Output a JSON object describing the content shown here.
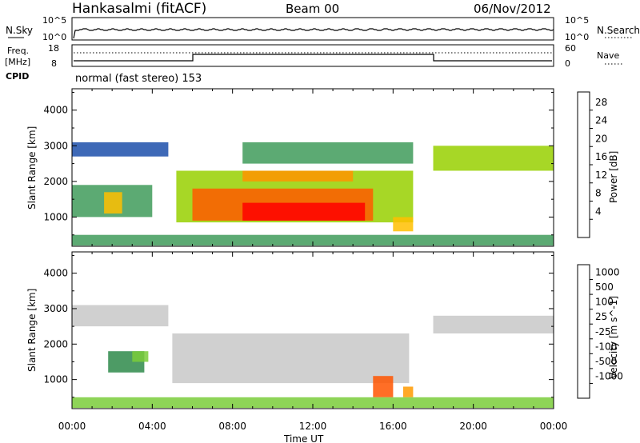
{
  "header": {
    "station": "Hankasalmi (fitACF)",
    "beam": "Beam 00",
    "date": "06/Nov/2012"
  },
  "panels": {
    "nsky": {
      "left_label": "N.Sky",
      "right_label": "N.Search",
      "tick_hi": "10^5",
      "tick_lo": "10^0",
      "right_tick_hi": "10^5",
      "right_tick_lo": "10^0"
    },
    "freq": {
      "left_label_1": "Freq.",
      "left_label_2": "[MHz]",
      "left_tick_hi": "18",
      "left_tick_lo": "8",
      "right_label": "Nave",
      "right_tick_hi": "60",
      "right_tick_lo": "0"
    },
    "cpid": {
      "label": "CPID",
      "text": "normal (fast stereo) 153"
    },
    "power_colorbar": {
      "label": "Power [dB]",
      "ticks": [
        "28",
        "24",
        "20",
        "16",
        "12",
        "8",
        "4"
      ],
      "colors": [
        "#ff0000",
        "#ff5a00",
        "#ff9400",
        "#ffc000",
        "#98d000",
        "#3f9b5a",
        "#1c4faa",
        "#0000ff"
      ]
    },
    "velocity_colorbar": {
      "label": "Velocity [m s^-1]",
      "ticks": [
        "1000",
        "500",
        "100",
        "25",
        "-25",
        "-100",
        "-500",
        "-1000"
      ],
      "colors": [
        "#1030b0",
        "#3a6fa0",
        "#2e8a4a",
        "#7acc3a",
        "#c8c8c8",
        "#ffd000",
        "#ff9a00",
        "#ff5500",
        "#ff0000"
      ]
    }
  },
  "x_axis": {
    "title": "Time UT",
    "tick_labels": [
      "00:00",
      "04:00",
      "08:00",
      "12:00",
      "16:00",
      "20:00",
      "00:00"
    ]
  },
  "y_axis": {
    "title": "Slant Range [km]",
    "tick_labels": [
      "4000",
      "3000",
      "2000",
      "1000"
    ]
  },
  "chart_data": [
    {
      "type": "heatmap",
      "title": "",
      "xlabel": "",
      "ylabel": "Slant Range [km]",
      "xlim_hours": [
        0,
        24
      ],
      "ylim_km": [
        180,
        4600
      ],
      "colorbar_label": "Power [dB]",
      "color_ticks": [
        4,
        8,
        12,
        16,
        20,
        24,
        28
      ],
      "regions": [
        {
          "t": [
            0.0,
            4.8
          ],
          "r": [
            2700,
            3100
          ],
          "dB": 6
        },
        {
          "t": [
            0.0,
            4.0
          ],
          "r": [
            1000,
            1900
          ],
          "dB": 8
        },
        {
          "t": [
            1.6,
            2.5
          ],
          "r": [
            1100,
            1700
          ],
          "dB": 18
        },
        {
          "t": [
            5.2,
            17.0
          ],
          "r": [
            850,
            2300
          ],
          "dB": 14
        },
        {
          "t": [
            6.0,
            15.0
          ],
          "r": [
            900,
            1800
          ],
          "dB": 24
        },
        {
          "t": [
            8.5,
            14.6
          ],
          "r": [
            900,
            1400
          ],
          "dB": 28
        },
        {
          "t": [
            8.5,
            14.0
          ],
          "r": [
            2000,
            2300
          ],
          "dB": 20
        },
        {
          "t": [
            8.5,
            17.0
          ],
          "r": [
            2500,
            3100
          ],
          "dB": 8
        },
        {
          "t": [
            16.0,
            17.0
          ],
          "r": [
            600,
            1000
          ],
          "dB": 18
        },
        {
          "t": [
            18.0,
            24.0
          ],
          "r": [
            2300,
            3000
          ],
          "dB": 12
        },
        {
          "t": [
            0.0,
            24.0
          ],
          "r": [
            200,
            500
          ],
          "dB": 10
        }
      ]
    },
    {
      "type": "heatmap",
      "title": "",
      "xlabel": "Time UT",
      "ylabel": "Slant Range [km]",
      "xlim_hours": [
        0,
        24
      ],
      "ylim_km": [
        180,
        4600
      ],
      "colorbar_label": "Velocity [m s^-1]",
      "color_ticks": [
        -1000,
        -500,
        -100,
        -25,
        25,
        100,
        500,
        1000
      ],
      "regions": [
        {
          "t": [
            0.0,
            4.8
          ],
          "r": [
            2500,
            3100
          ],
          "v": 0
        },
        {
          "t": [
            1.8,
            3.6
          ],
          "r": [
            1200,
            1800
          ],
          "v": 300
        },
        {
          "t": [
            3.0,
            3.8
          ],
          "r": [
            1500,
            1800
          ],
          "v": 80
        },
        {
          "t": [
            5.0,
            16.8
          ],
          "r": [
            900,
            2300
          ],
          "v": 0
        },
        {
          "t": [
            15.0,
            16.0
          ],
          "r": [
            500,
            1100
          ],
          "v": -600
        },
        {
          "t": [
            16.5,
            17.0
          ],
          "r": [
            500,
            800
          ],
          "v": -300
        },
        {
          "t": [
            18.0,
            24.0
          ],
          "r": [
            2300,
            2800
          ],
          "v": 0
        },
        {
          "t": [
            0.0,
            24.0
          ],
          "r": [
            200,
            500
          ],
          "v": 60
        }
      ]
    }
  ]
}
